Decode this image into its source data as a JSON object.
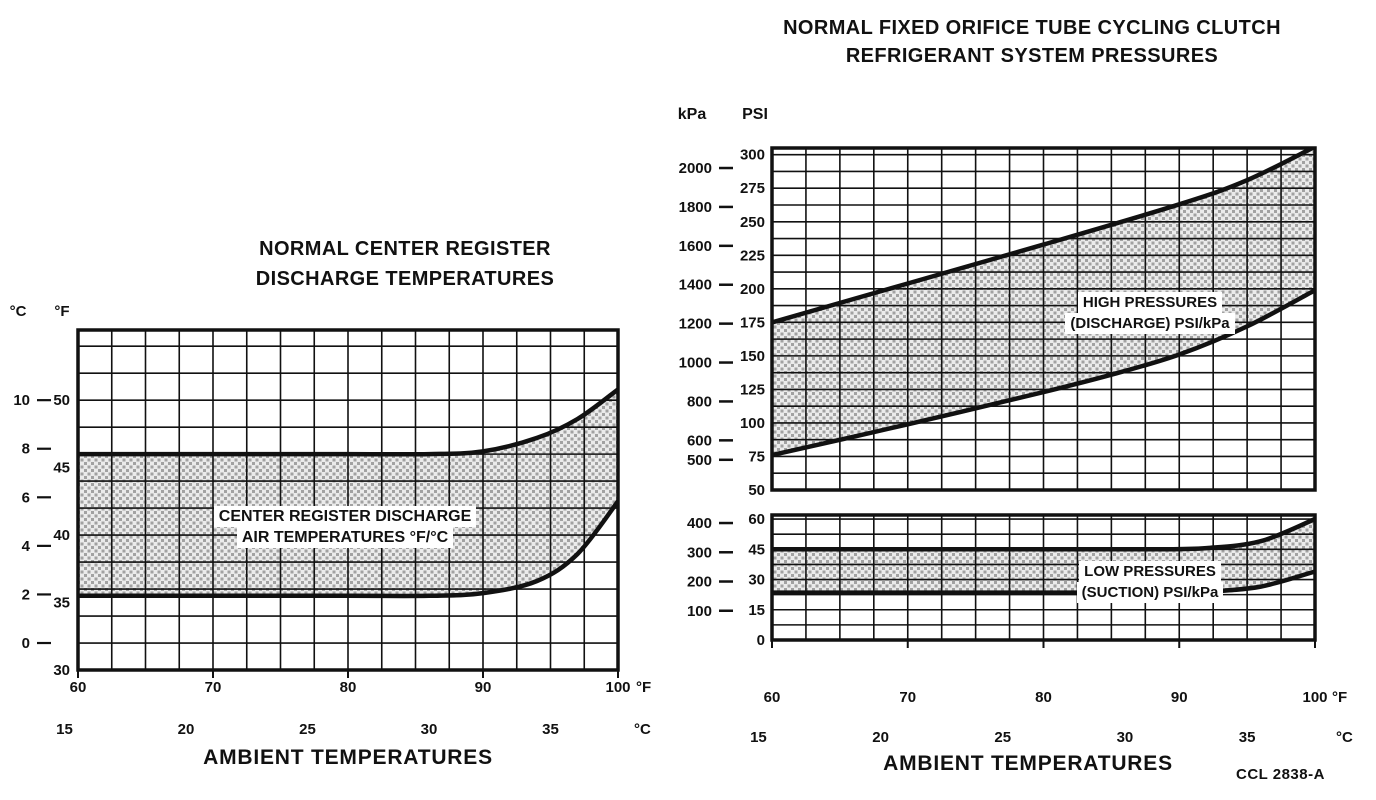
{
  "page": {
    "code": "CCL 2838-A",
    "background": "#ffffff",
    "ink": "#111111"
  },
  "chart_data": [
    {
      "type": "area",
      "title": "NORMAL CENTER REGISTER DISCHARGE TEMPERATURES",
      "title_lines": [
        "NORMAL CENTER REGISTER",
        "DISCHARGE TEMPERATURES"
      ],
      "xlabel": "AMBIENT TEMPERATURES",
      "band_label": "CENTER REGISTER DISCHARGE AIR TEMPERATURES °F/°C",
      "band_label_lines": [
        "CENTER REGISTER DISCHARGE",
        "AIR TEMPERATURES °F/°C"
      ],
      "grid": true,
      "x_axis": {
        "unit_f": "°F",
        "unit_c": "°C",
        "ticks_f": [
          60,
          70,
          80,
          90,
          100
        ],
        "ticks_c": [
          15,
          20,
          25,
          30,
          35
        ],
        "range_f": [
          60,
          100
        ]
      },
      "y_axis": {
        "unit_f": "°F",
        "unit_c": "°C",
        "ticks_f": [
          30,
          35,
          40,
          45,
          50
        ],
        "ticks_c": [
          0,
          2,
          4,
          6,
          8,
          10
        ],
        "range_f": [
          30,
          55
        ]
      },
      "series": [
        {
          "name": "center-register-discharge-upper-limit",
          "unit": "°F",
          "x": [
            60,
            70,
            80,
            86,
            90,
            94,
            97,
            100
          ],
          "values": [
            46,
            46,
            46,
            46,
            46.2,
            47.2,
            48.6,
            50.8
          ]
        },
        {
          "name": "center-register-discharge-lower-limit",
          "unit": "°F",
          "x": [
            60,
            70,
            80,
            86,
            90,
            94,
            97,
            100
          ],
          "values": [
            35.5,
            35.5,
            35.5,
            35.5,
            35.7,
            36.6,
            38.6,
            42.5
          ]
        }
      ]
    },
    {
      "type": "area",
      "title": "NORMAL FIXED ORIFICE TUBE CYCLING CLUTCH REFRIGERANT SYSTEM PRESSURES",
      "title_lines": [
        "NORMAL FIXED ORIFICE TUBE CYCLING CLUTCH",
        "REFRIGERANT SYSTEM PRESSURES"
      ],
      "xlabel": "AMBIENT TEMPERATURES",
      "grid": true,
      "y_units": {
        "kpa": "kPa",
        "psi": "PSI"
      },
      "x_axis": {
        "unit_f": "°F",
        "unit_c": "°C",
        "ticks_f": [
          60,
          70,
          80,
          90,
          100
        ],
        "ticks_c": [
          15,
          20,
          25,
          30,
          35
        ],
        "range_f": [
          60,
          100
        ]
      },
      "panels": [
        {
          "name": "high-pressures-discharge",
          "band_label": "HIGH PRESSURES (DISCHARGE) PSI/kPa",
          "band_label_lines": [
            "HIGH PRESSURES",
            "(DISCHARGE) PSI/kPa"
          ],
          "y_axis": {
            "ticks_psi": [
              300,
              275,
              250,
              225,
              200,
              175,
              150,
              125,
              100,
              75,
              50
            ],
            "ticks_kpa": [
              2000,
              1800,
              1600,
              1400,
              1200,
              1000,
              800,
              600,
              500
            ],
            "range_psi": [
              50,
              305
            ]
          },
          "series": [
            {
              "name": "discharge-pressure-upper-limit",
              "unit": "PSI",
              "x": [
                60,
                70,
                80,
                90,
                95,
                100
              ],
              "values": [
                175,
                204,
                233,
                263,
                281,
                306
              ]
            },
            {
              "name": "discharge-pressure-lower-limit",
              "unit": "PSI",
              "x": [
                60,
                70,
                80,
                85,
                90,
                95,
                100
              ],
              "values": [
                76,
                99,
                123,
                136,
                151,
                172,
                199
              ]
            }
          ]
        },
        {
          "name": "low-pressures-suction",
          "band_label": "LOW PRESSURES (SUCTION) PSI/kPa",
          "band_label_lines": [
            "LOW PRESSURES",
            "(SUCTION) PSI/kPa"
          ],
          "y_axis": {
            "ticks_psi": [
              60,
              45,
              30,
              15,
              0
            ],
            "ticks_kpa": [
              400,
              300,
              200,
              100
            ],
            "range_psi": [
              0,
              62
            ]
          },
          "series": [
            {
              "name": "suction-pressure-upper-limit",
              "unit": "PSI",
              "x": [
                60,
                70,
                80,
                88,
                92,
                96,
                100
              ],
              "values": [
                45,
                45,
                45,
                45,
                45.6,
                49,
                60
              ]
            },
            {
              "name": "suction-pressure-lower-limit",
              "unit": "PSI",
              "x": [
                60,
                70,
                80,
                88,
                92,
                96,
                100
              ],
              "values": [
                23.5,
                23.5,
                23.5,
                23.5,
                24,
                26.5,
                34
              ]
            }
          ]
        }
      ]
    }
  ]
}
